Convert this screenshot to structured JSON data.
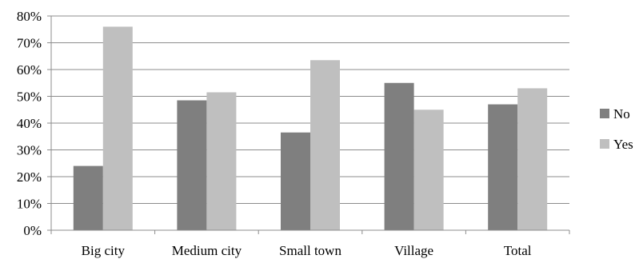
{
  "chart_data": {
    "type": "bar",
    "categories": [
      "Big city",
      "Medium city",
      "Small town",
      "Village",
      "Total"
    ],
    "series": [
      {
        "name": "No",
        "values": [
          24,
          48.5,
          36.5,
          55,
          47
        ],
        "color": "#7f7f7f"
      },
      {
        "name": "Yes",
        "values": [
          76,
          51.5,
          63.5,
          45,
          53
        ],
        "color": "#bfbfbf"
      }
    ],
    "y_ticks": [
      "0%",
      "10%",
      "20%",
      "30%",
      "40%",
      "50%",
      "60%",
      "70%",
      "80%"
    ],
    "ylim": [
      0,
      80
    ],
    "grid": true,
    "legend_position": "right"
  }
}
